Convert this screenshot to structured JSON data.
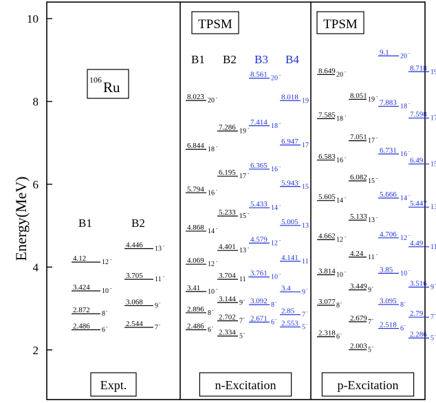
{
  "chart_data": {
    "type": "level-scheme",
    "ylabel": "Energy(MeV)",
    "ylim": [
      0.8,
      10.4
    ],
    "y_ticks": [
      "2",
      "4",
      "6",
      "8",
      "10"
    ],
    "blue_color": "#1f2fd6",
    "panels": [
      {
        "id": "expt",
        "header": "",
        "nucleus_mass": "106",
        "nucleus_symbol": "Ru",
        "footer": "Expt.",
        "bands": [
          {
            "name": "B1",
            "color": "black",
            "levels": [
              {
                "value": "2.486",
                "spin": "6"
              },
              {
                "value": "2.872",
                "spin": "8"
              },
              {
                "value": "3.424",
                "spin": "10"
              },
              {
                "value": "4.12",
                "spin": "12"
              }
            ]
          },
          {
            "name": "B2",
            "color": "black",
            "levels": [
              {
                "value": "2.544",
                "spin": "7"
              },
              {
                "value": "3.068",
                "spin": "9"
              },
              {
                "value": "3.705",
                "spin": "11"
              },
              {
                "value": "4.446",
                "spin": "13"
              }
            ]
          }
        ]
      },
      {
        "id": "n-exc",
        "header": "TPSM",
        "footer": "n-Excitation",
        "bands": [
          {
            "name": "B1",
            "color": "black",
            "levels": [
              {
                "value": "2.486",
                "spin": "6"
              },
              {
                "value": "2.896",
                "spin": "8"
              },
              {
                "value": "3.41",
                "spin": "10"
              },
              {
                "value": "4.069",
                "spin": "12"
              },
              {
                "value": "4.868",
                "spin": "14"
              },
              {
                "value": "5.794",
                "spin": "16"
              },
              {
                "value": "6.844",
                "spin": "18"
              },
              {
                "value": "8.023",
                "spin": "20"
              }
            ]
          },
          {
            "name": "B2",
            "color": "black",
            "levels": [
              {
                "value": "2.334",
                "spin": "5"
              },
              {
                "value": "2.702",
                "spin": "7"
              },
              {
                "value": "3.144",
                "spin": "9"
              },
              {
                "value": "3.704",
                "spin": "11"
              },
              {
                "value": "4.401",
                "spin": "13"
              },
              {
                "value": "5.233",
                "spin": "15"
              },
              {
                "value": "6.195",
                "spin": "17"
              },
              {
                "value": "7.286",
                "spin": "19"
              }
            ]
          },
          {
            "name": "B3",
            "color": "blue",
            "levels": [
              {
                "value": "2.671",
                "spin": "6"
              },
              {
                "value": "3.092",
                "spin": "8"
              },
              {
                "value": "3.761",
                "spin": "10"
              },
              {
                "value": "4.579",
                "spin": "12"
              },
              {
                "value": "5.433",
                "spin": "14"
              },
              {
                "value": "6.365",
                "spin": "16"
              },
              {
                "value": "7.414",
                "spin": "18"
              },
              {
                "value": "8.561",
                "spin": "20"
              }
            ]
          },
          {
            "name": "B4",
            "color": "blue",
            "levels": [
              {
                "value": "2.553",
                "spin": "5"
              },
              {
                "value": "2.85",
                "spin": "7"
              },
              {
                "value": "3.4",
                "spin": "9"
              },
              {
                "value": "4.141",
                "spin": "11"
              },
              {
                "value": "5.005",
                "spin": "13"
              },
              {
                "value": "5.943",
                "spin": "15"
              },
              {
                "value": "6.947",
                "spin": "17"
              },
              {
                "value": "8.018",
                "spin": "19"
              }
            ]
          }
        ]
      },
      {
        "id": "p-exc",
        "header": "TPSM",
        "footer": "p-Excitation",
        "bands": [
          {
            "name": "",
            "color": "black",
            "levels": [
              {
                "value": "2.318",
                "spin": "6"
              },
              {
                "value": "3.077",
                "spin": "8"
              },
              {
                "value": "3.814",
                "spin": "10"
              },
              {
                "value": "4.662",
                "spin": "12"
              },
              {
                "value": "5.605",
                "spin": "14"
              },
              {
                "value": "6.583",
                "spin": "16"
              },
              {
                "value": "7.585",
                "spin": "18"
              },
              {
                "value": "8.649",
                "spin": "20"
              }
            ]
          },
          {
            "name": "",
            "color": "black",
            "levels": [
              {
                "value": "2.003",
                "spin": "5"
              },
              {
                "value": "2.679",
                "spin": "7"
              },
              {
                "value": "3.449",
                "spin": "9"
              },
              {
                "value": "4.24",
                "spin": "11"
              },
              {
                "value": "5.133",
                "spin": "13"
              },
              {
                "value": "6.082",
                "spin": "15"
              },
              {
                "value": "7.051",
                "spin": "17"
              },
              {
                "value": "8.051",
                "spin": "19"
              }
            ]
          },
          {
            "name": "",
            "color": "blue",
            "levels": [
              {
                "value": "2.518",
                "spin": "6"
              },
              {
                "value": "3.095",
                "spin": "8"
              },
              {
                "value": "3.85",
                "spin": "10"
              },
              {
                "value": "4.706",
                "spin": "12"
              },
              {
                "value": "5.666",
                "spin": "14"
              },
              {
                "value": "6.731",
                "spin": "16"
              },
              {
                "value": "7.883",
                "spin": "18"
              },
              {
                "value": "9.1",
                "spin": "20"
              }
            ]
          },
          {
            "name": "",
            "color": "blue",
            "levels": [
              {
                "value": "2.286",
                "spin": "5"
              },
              {
                "value": "2.79",
                "spin": "7"
              },
              {
                "value": "3.516",
                "spin": "9"
              },
              {
                "value": "4.49",
                "spin": "11"
              },
              {
                "value": "5.447",
                "spin": "13"
              },
              {
                "value": "6.49",
                "spin": "15"
              },
              {
                "value": "7.598",
                "spin": "17"
              },
              {
                "value": "8.718",
                "spin": "19"
              }
            ]
          }
        ]
      }
    ]
  }
}
